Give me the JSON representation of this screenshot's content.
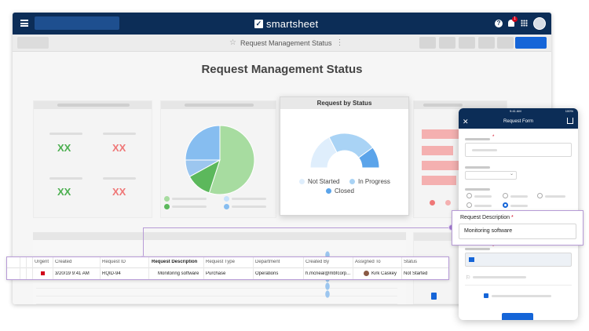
{
  "header": {
    "brand": "smartsheet",
    "brand_logo_glyph": "✓",
    "help_glyph": "?",
    "notification_count": "1"
  },
  "sheet": {
    "title": "Request Management Status"
  },
  "dashboard": {
    "title": "Request Management Status",
    "metric_tiles": [
      "XX",
      "XX",
      "XX",
      "XX"
    ]
  },
  "status_chart": {
    "title": "Request by Status",
    "legend": [
      "Not Started",
      "In Progress",
      "Closed"
    ]
  },
  "chart_data": [
    {
      "type": "pie",
      "slices": [
        {
          "value": 55,
          "color": "#a7dca0"
        },
        {
          "value": 12,
          "color": "#5cb85c"
        },
        {
          "value": 8,
          "color": "#9cc6ef"
        },
        {
          "value": 25,
          "color": "#86bdf0"
        }
      ]
    },
    {
      "type": "pie",
      "title": "Request by Status",
      "categories": [
        "Not Started",
        "In Progress",
        "Closed"
      ],
      "values": [
        35,
        45,
        20
      ],
      "colors": [
        "#dfeefc",
        "#a9d3f5",
        "#5ba4ea"
      ]
    }
  ],
  "grid": {
    "columns": [
      "Urgent",
      "Created",
      "Request ID",
      "Request Description",
      "Request Type",
      "Department",
      "Created By",
      "Assigned To",
      "Status"
    ],
    "highlight_row": {
      "urgent": "flag",
      "created": "3/20/19 9:41 AM",
      "request_id": "RQID-94",
      "request_description": "Monitoring software",
      "request_type": "Purchase",
      "department": "Operations",
      "created_by": "h.mcneal@mbfcorp...",
      "assigned_to": "Kirk Caskey",
      "status": "Not Started"
    }
  },
  "mobile_form": {
    "status_time": "9:41 AM",
    "status_battery": "100%",
    "title": "Request Form",
    "close_glyph": "✕",
    "required_mark": "*"
  },
  "callout": {
    "label": "Request Description",
    "required_mark": "*",
    "value": "Monitoring software"
  },
  "colors": {
    "navy": "#0c2d57",
    "primary_blue": "#1565d8",
    "highlight_purple": "#b79bd6",
    "green_metric": "#4caf50",
    "red_metric": "#ef7777"
  }
}
